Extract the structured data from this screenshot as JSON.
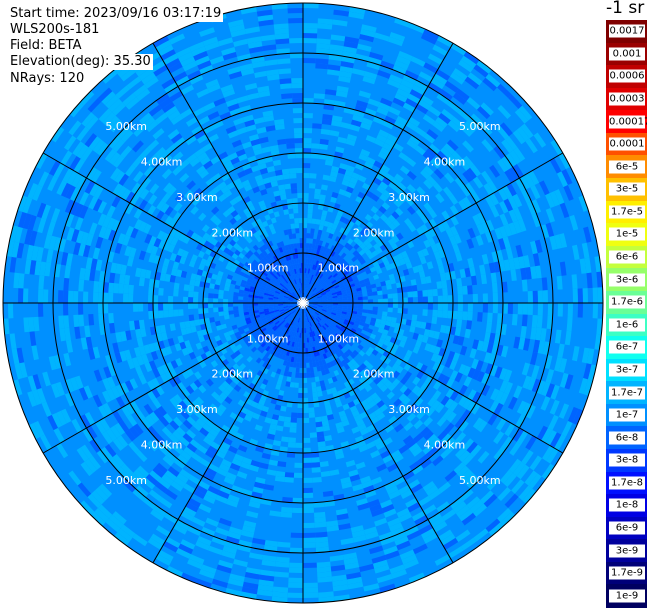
{
  "header": {
    "start_time": "Start time: 2023/09/16 03:17:19",
    "site": "WLS200s-181",
    "field": "Field: BETA",
    "elevation": "Elevation(deg): 35.30",
    "nrays": "NRays: 120"
  },
  "chart_data": {
    "type": "heatmap",
    "projection": "polar-ppi",
    "range_rings": [
      {
        "label": "1.00km",
        "range_km": 1
      },
      {
        "label": "2.00km",
        "range_km": 2
      },
      {
        "label": "3.00km",
        "range_km": 3
      },
      {
        "label": "4.00km",
        "range_km": 4
      },
      {
        "label": "5.00km",
        "range_km": 5
      }
    ],
    "max_range_km": 6,
    "n_rays": 120,
    "spokes_deg_step": 30,
    "colorbar": {
      "unit": "-1 sr",
      "scale": "log",
      "levels": [
        {
          "label": "0.0017",
          "color": "#7f0000"
        },
        {
          "label": "0.001",
          "color": "#9a0000"
        },
        {
          "label": "0.0006",
          "color": "#c00000"
        },
        {
          "label": "0.0003",
          "color": "#e00000"
        },
        {
          "label": "0.00017",
          "color": "#ff0000"
        },
        {
          "label": "0.0001",
          "color": "#ff5000"
        },
        {
          "label": "6e-5",
          "color": "#ff8c00"
        },
        {
          "label": "3e-5",
          "color": "#ffc000"
        },
        {
          "label": "1.7e-5",
          "color": "#ffef00"
        },
        {
          "label": "1e-5",
          "color": "#f0ff10"
        },
        {
          "label": "6e-6",
          "color": "#c4ff3c"
        },
        {
          "label": "3e-6",
          "color": "#96ff6a"
        },
        {
          "label": "1.7e-6",
          "color": "#6aff96"
        },
        {
          "label": "1e-6",
          "color": "#3cffc4"
        },
        {
          "label": "6e-7",
          "color": "#10ffef"
        },
        {
          "label": "3e-7",
          "color": "#00e0ff"
        },
        {
          "label": "1.7e-7",
          "color": "#00b4ff"
        },
        {
          "label": "1e-7",
          "color": "#0090ff"
        },
        {
          "label": "6e-8",
          "color": "#0064ff"
        },
        {
          "label": "3e-8",
          "color": "#0038ff"
        },
        {
          "label": "1.7e-8",
          "color": "#0010ff"
        },
        {
          "label": "1e-8",
          "color": "#0000e4"
        },
        {
          "label": "6e-9",
          "color": "#0000c0"
        },
        {
          "label": "3e-9",
          "color": "#00009c"
        },
        {
          "label": "1.7e-9",
          "color": "#000078"
        },
        {
          "label": "1e-9",
          "color": "#000060"
        }
      ]
    },
    "field_colors": {
      "inner": "#0064ff",
      "mid": "#0090ff",
      "speckle": "#00b4ff",
      "dark": "#0038ff"
    }
  }
}
